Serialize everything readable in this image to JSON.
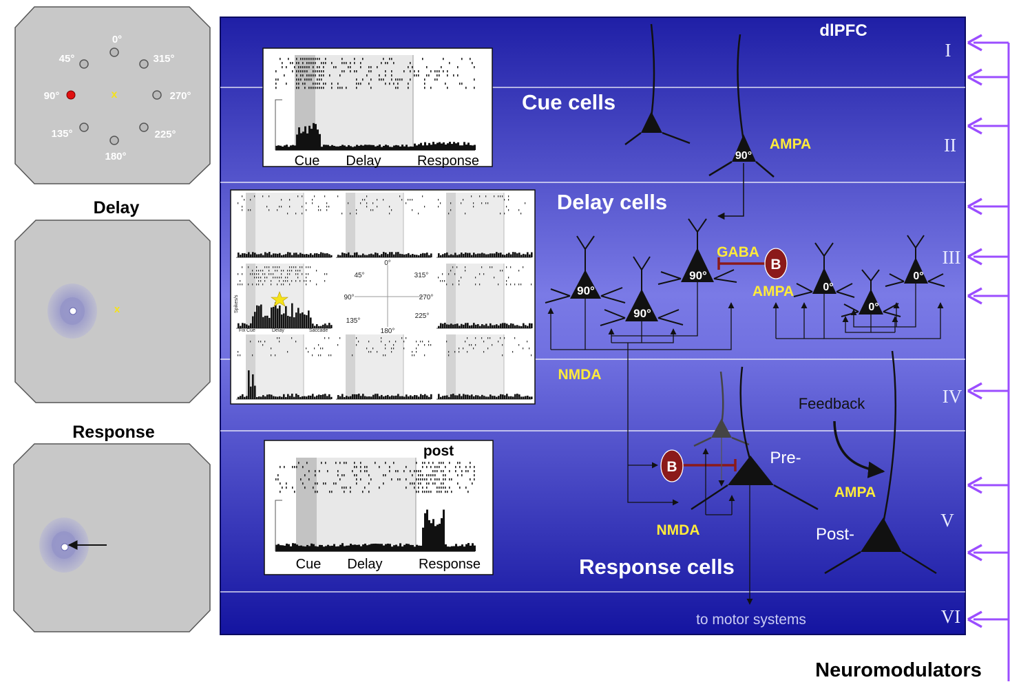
{
  "colors": {
    "panel_top": "#1a1a9a",
    "panel_mid": "#7a7ae6",
    "label_yellow": "#ffeb3b",
    "modulator_arrow": "#9b4dff",
    "gaba_bar": "#8b1a1a",
    "inhibitory_cell": "#8b1a1a"
  },
  "screens": {
    "cue_degrees": [
      "0°",
      "45°",
      "315°",
      "90°",
      "270°",
      "135°",
      "225°",
      "180°"
    ],
    "delay_title": "Delay",
    "response_title": "Response"
  },
  "panel": {
    "title": "dlPFC",
    "layers": [
      "I",
      "II",
      "III",
      "IV",
      "V",
      "VI"
    ],
    "section_labels": {
      "cue": "Cue cells",
      "delay": "Delay cells",
      "response": "Response cells"
    },
    "receptor_labels": {
      "ampa_1": "AMPA",
      "gaba": "GABA",
      "ampa_2": "AMPA",
      "nmda_1": "NMDA",
      "ampa_3": "AMPA",
      "nmda_2": "NMDA"
    },
    "cell_labels": {
      "cue_cell": "90°",
      "delay_a": "90°",
      "delay_b": "90°",
      "delay_c": "90°",
      "delay_d": "0°",
      "delay_e": "0°",
      "delay_f": "0°",
      "inhibitory_1": "B",
      "inhibitory_2": "B"
    },
    "feedback_label": "Feedback",
    "pre_label": "Pre-",
    "post_label": "Post-",
    "motor_label": "to motor  systems"
  },
  "insets": {
    "cue_inset_axis": [
      "Cue",
      "Delay",
      "Response"
    ],
    "delay_grid_center": [
      "0°",
      "45°",
      "315°",
      "90°",
      "270°",
      "135°",
      "225°",
      "180°"
    ],
    "delay_grid_axis": [
      "Fix",
      "Cue",
      "Delay",
      "Saccade"
    ],
    "delay_grid_ylabel": "Spikes/s",
    "response_inset_title": "post",
    "response_inset_axis": [
      "Cue",
      "Delay",
      "Response"
    ]
  },
  "neuromodulators_label": "Neuromodulators"
}
